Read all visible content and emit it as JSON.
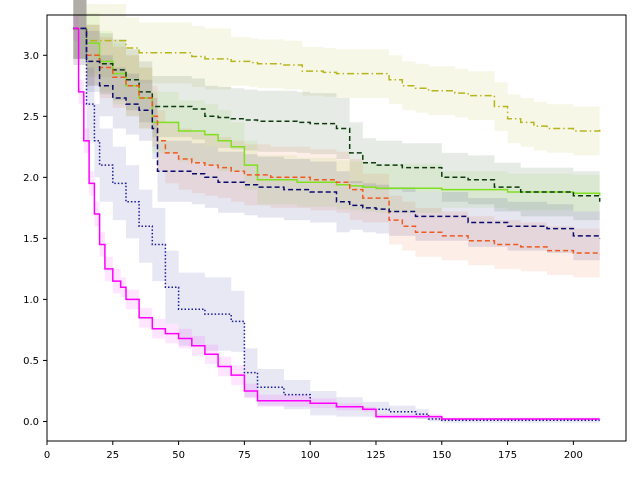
{
  "chart_data": {
    "type": "line",
    "title": "",
    "xlabel": "",
    "ylabel": "",
    "xlim": [
      0,
      220
    ],
    "ylim": [
      -0.16,
      3.33
    ],
    "grid": false,
    "legend": "none",
    "x_ticks": [
      0,
      25,
      50,
      75,
      100,
      125,
      150,
      175,
      200
    ],
    "x_tick_labels": [
      "0",
      "25",
      "50",
      "75",
      "100",
      "125",
      "150",
      "175",
      "200"
    ],
    "y_ticks": [
      0.0,
      0.5,
      1.0,
      1.5,
      2.0,
      2.5,
      3.0
    ],
    "y_tick_labels": [
      "0.0",
      "0.5",
      "1.0",
      "1.5",
      "2.0",
      "2.5",
      "3.0"
    ],
    "series": [
      {
        "color": "#b5b51d",
        "dash": "dash-dot",
        "x": [
          10,
          15,
          30,
          35,
          55,
          60,
          70,
          77,
          80,
          90,
          97,
          105,
          110,
          130,
          135,
          140,
          145,
          155,
          160,
          170,
          175,
          180,
          185,
          190,
          200,
          210
        ],
        "y": [
          3.22,
          3.12,
          3.06,
          3.02,
          2.99,
          2.97,
          2.95,
          2.94,
          2.93,
          2.92,
          2.87,
          2.86,
          2.85,
          2.8,
          2.75,
          2.73,
          2.71,
          2.69,
          2.67,
          2.58,
          2.48,
          2.45,
          2.42,
          2.4,
          2.38,
          2.39
        ],
        "band": [
          0.3,
          0.3,
          0.25,
          0.25,
          0.25,
          0.25,
          0.2,
          0.2,
          0.2,
          0.2,
          0.2,
          0.2,
          0.2,
          0.2,
          0.2,
          0.2,
          0.2,
          0.2,
          0.2,
          0.2,
          0.2,
          0.2,
          0.2,
          0.2,
          0.2,
          0.2
        ]
      },
      {
        "color": "#7fe020",
        "dash": "solid",
        "x": [
          10,
          15,
          20,
          25,
          30,
          35,
          40,
          50,
          60,
          65,
          70,
          75,
          80,
          95,
          110,
          115,
          120,
          125,
          150,
          175,
          200,
          210
        ],
        "y": [
          3.22,
          3.1,
          2.95,
          2.85,
          2.75,
          2.65,
          2.45,
          2.38,
          2.35,
          2.3,
          2.25,
          2.1,
          1.98,
          1.96,
          1.94,
          1.93,
          1.92,
          1.91,
          1.9,
          1.88,
          1.87,
          1.85
        ],
        "band": [
          0.25,
          0.25,
          0.25,
          0.25,
          0.25,
          0.25,
          0.25,
          0.25,
          0.25,
          0.25,
          0.2,
          0.2,
          0.2,
          0.2,
          0.2,
          0.2,
          0.2,
          0.2,
          0.15,
          0.15,
          0.15,
          0.15
        ]
      },
      {
        "color": "#0d3b0d",
        "dash": "dashed",
        "x": [
          10,
          15,
          20,
          25,
          30,
          35,
          40,
          55,
          60,
          65,
          70,
          75,
          80,
          90,
          95,
          100,
          110,
          115,
          120,
          125,
          135,
          150,
          160,
          170,
          180,
          200,
          210
        ],
        "y": [
          3.22,
          3.0,
          2.93,
          2.88,
          2.8,
          2.7,
          2.58,
          2.56,
          2.5,
          2.49,
          2.48,
          2.47,
          2.46,
          2.46,
          2.45,
          2.44,
          2.4,
          2.2,
          2.12,
          2.1,
          2.08,
          2.0,
          1.98,
          1.92,
          1.88,
          1.85,
          1.8
        ],
        "band": [
          0.25,
          0.25,
          0.25,
          0.25,
          0.25,
          0.25,
          0.25,
          0.25,
          0.25,
          0.25,
          0.25,
          0.25,
          0.25,
          0.25,
          0.25,
          0.25,
          0.25,
          0.25,
          0.2,
          0.2,
          0.2,
          0.2,
          0.2,
          0.2,
          0.2,
          0.2,
          0.2
        ]
      },
      {
        "color": "#f05a20",
        "dash": "dashed",
        "x": [
          10,
          15,
          20,
          25,
          30,
          35,
          40,
          42,
          45,
          50,
          55,
          60,
          65,
          70,
          75,
          85,
          100,
          110,
          115,
          120,
          130,
          135,
          140,
          150,
          160,
          170,
          180,
          190,
          200,
          210
        ],
        "y": [
          3.22,
          3.0,
          2.9,
          2.82,
          2.75,
          2.65,
          2.5,
          2.3,
          2.2,
          2.15,
          2.12,
          2.1,
          2.08,
          2.05,
          2.02,
          2.0,
          1.98,
          1.96,
          1.9,
          1.83,
          1.65,
          1.6,
          1.55,
          1.52,
          1.48,
          1.45,
          1.43,
          1.4,
          1.38,
          1.37
        ],
        "band": [
          0.25,
          0.25,
          0.25,
          0.25,
          0.25,
          0.25,
          0.25,
          0.25,
          0.25,
          0.25,
          0.25,
          0.25,
          0.25,
          0.25,
          0.25,
          0.25,
          0.25,
          0.25,
          0.25,
          0.2,
          0.2,
          0.2,
          0.2,
          0.2,
          0.2,
          0.2,
          0.2,
          0.2,
          0.2,
          0.2
        ]
      },
      {
        "color": "#0a0a6e",
        "dash": "dashed",
        "x": [
          10,
          15,
          20,
          25,
          30,
          35,
          40,
          42,
          55,
          60,
          65,
          75,
          80,
          90,
          100,
          110,
          115,
          120,
          125,
          130,
          140,
          160,
          175,
          190,
          200,
          210
        ],
        "y": [
          3.22,
          2.95,
          2.75,
          2.65,
          2.6,
          2.55,
          2.4,
          2.05,
          2.03,
          2.0,
          1.96,
          1.94,
          1.92,
          1.9,
          1.88,
          1.8,
          1.77,
          1.75,
          1.74,
          1.72,
          1.68,
          1.63,
          1.6,
          1.58,
          1.52,
          1.5
        ],
        "band": [
          0.25,
          0.25,
          0.25,
          0.25,
          0.25,
          0.25,
          0.25,
          0.25,
          0.25,
          0.25,
          0.25,
          0.25,
          0.25,
          0.25,
          0.25,
          0.25,
          0.2,
          0.2,
          0.2,
          0.2,
          0.2,
          0.2,
          0.2,
          0.2,
          0.2,
          0.2
        ]
      },
      {
        "color": "#1a1a99",
        "dash": "dotted",
        "x": [
          10,
          15,
          18,
          20,
          25,
          30,
          35,
          40,
          45,
          50,
          60,
          70,
          75,
          80,
          90,
          100,
          110,
          120,
          130,
          140,
          145,
          150,
          175,
          210
        ],
        "y": [
          3.22,
          2.6,
          2.3,
          2.1,
          1.95,
          1.8,
          1.6,
          1.45,
          1.1,
          0.92,
          0.88,
          0.82,
          0.4,
          0.28,
          0.22,
          0.15,
          0.12,
          0.1,
          0.08,
          0.06,
          0.02,
          0.01,
          0.01,
          0.01
        ],
        "band": [
          0.3,
          0.3,
          0.3,
          0.3,
          0.3,
          0.3,
          0.3,
          0.3,
          0.3,
          0.3,
          0.3,
          0.25,
          0.2,
          0.15,
          0.12,
          0.1,
          0.08,
          0.06,
          0.05,
          0.04,
          0.02,
          0.02,
          0.02,
          0.02
        ]
      },
      {
        "color": "#ff00ff",
        "dash": "solid",
        "x": [
          10,
          12,
          14,
          16,
          18,
          20,
          22,
          25,
          28,
          30,
          35,
          40,
          45,
          50,
          55,
          60,
          65,
          70,
          75,
          80,
          100,
          110,
          120,
          125,
          150,
          210
        ],
        "y": [
          3.22,
          2.7,
          2.3,
          1.95,
          1.7,
          1.45,
          1.25,
          1.15,
          1.1,
          1.0,
          0.85,
          0.76,
          0.72,
          0.68,
          0.62,
          0.55,
          0.45,
          0.38,
          0.25,
          0.17,
          0.15,
          0.12,
          0.1,
          0.04,
          0.02,
          0.02
        ],
        "band": [
          0.1,
          0.1,
          0.1,
          0.1,
          0.1,
          0.1,
          0.1,
          0.1,
          0.08,
          0.08,
          0.08,
          0.08,
          0.08,
          0.08,
          0.08,
          0.08,
          0.08,
          0.08,
          0.06,
          0.05,
          0.04,
          0.03,
          0.02,
          0.02,
          0.01,
          0.01
        ]
      }
    ]
  }
}
